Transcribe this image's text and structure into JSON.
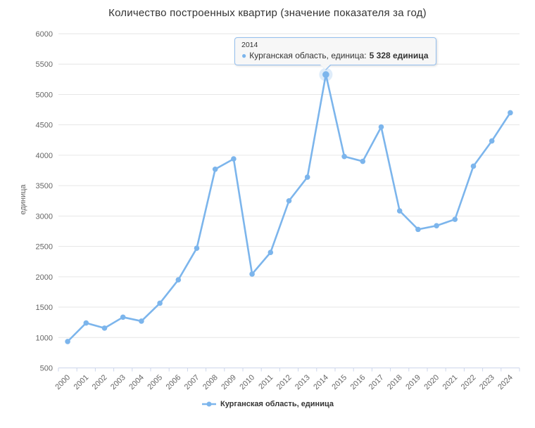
{
  "colors": {
    "series": "#7cb5ec",
    "series_border": "#94bfee",
    "halo": "rgba(124,181,236,0.25)",
    "grid": "#e6e6e6",
    "axis_line": "#ccd6eb",
    "tick": "#ccd6eb",
    "axis_label": "#666666",
    "title_text": "#333333",
    "tooltip_bg": "#f7f7f7",
    "legend_text": "#333333"
  },
  "icons": {
    "series_marker": "●"
  },
  "chart_data": {
    "type": "line",
    "title": "Количество построенных квартир (значение показателя за год)",
    "xlabel": "",
    "ylabel": "единица",
    "ylim": [
      500,
      6000
    ],
    "y_ticks": [
      500,
      1000,
      1500,
      2000,
      2500,
      3000,
      3500,
      4000,
      4500,
      5000,
      5500,
      6000
    ],
    "grid": true,
    "legend_position": "bottom",
    "categories": [
      "2000",
      "2001",
      "2002",
      "2003",
      "2004",
      "2005",
      "2006",
      "2007",
      "2008",
      "2009",
      "2010",
      "2011",
      "2012",
      "2013",
      "2014",
      "2015",
      "2016",
      "2017",
      "2018",
      "2019",
      "2020",
      "2021",
      "2022",
      "2023",
      "2024"
    ],
    "series": [
      {
        "name": "Курганская область, единица",
        "color": "#7cb5ec",
        "values": [
          935,
          1240,
          1155,
          1335,
          1270,
          1565,
          1950,
          2470,
          3770,
          3940,
          2045,
          2400,
          3250,
          3640,
          5328,
          3980,
          3900,
          4465,
          3085,
          2780,
          2840,
          2945,
          3820,
          4235,
          4700
        ]
      }
    ],
    "highlight": {
      "category": "2014",
      "value": 5328
    },
    "tooltip": {
      "header": "2014",
      "series_label": "Курганская область, единица:",
      "value": "5 328 единица"
    }
  }
}
